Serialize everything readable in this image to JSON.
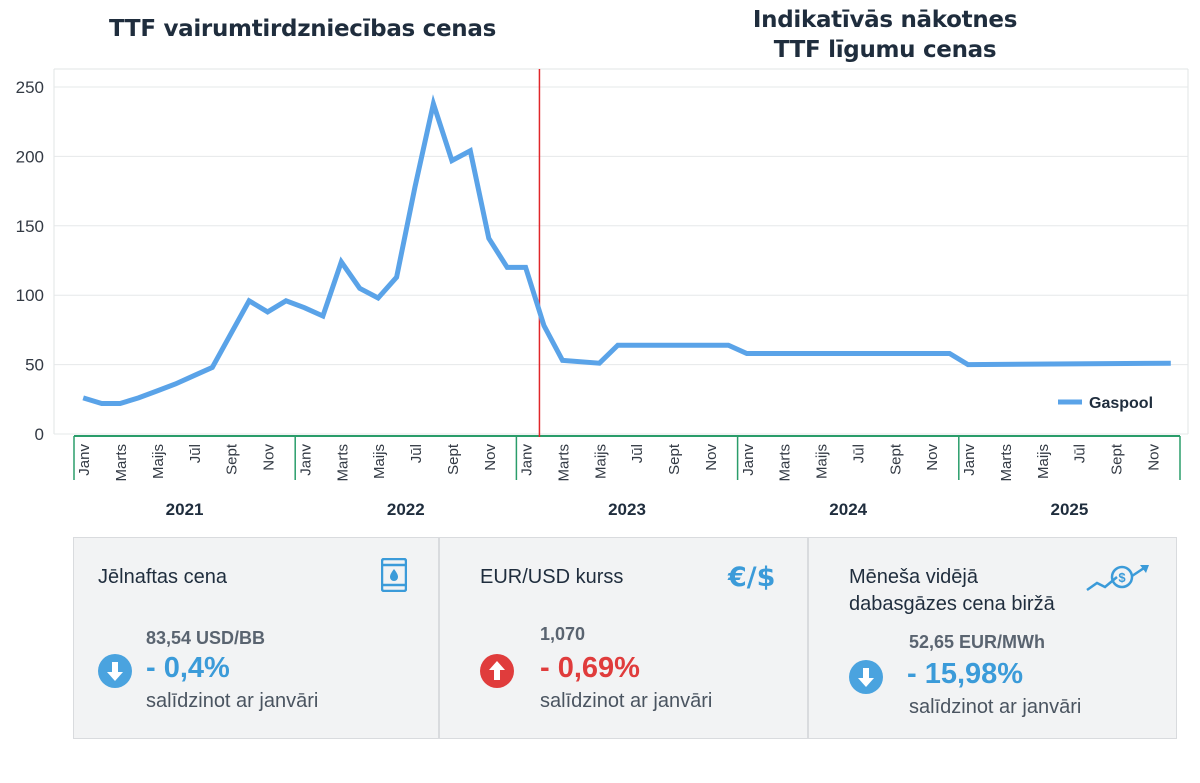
{
  "titles": {
    "left": "TTF vairumtirdzniecības cenas",
    "right_line1": "Indikatīvās nākotnes",
    "right_line2": "TTF līgumu cenas"
  },
  "chart_data": {
    "type": "line",
    "y_ticks": [
      0,
      50,
      100,
      150,
      200,
      250
    ],
    "ylim": [
      0,
      250
    ],
    "month_labels": [
      "Janv",
      "Marts",
      "Maijs",
      "Jūl",
      "Sept",
      "Nov"
    ],
    "years": [
      "2021",
      "2022",
      "2023",
      "2024",
      "2025"
    ],
    "legend_position": "bottom-right",
    "grid": true,
    "divider_after": "2023-01",
    "series": [
      {
        "name": "Gaspool",
        "color": "#5aa3e8",
        "points": [
          [
            "2021-01",
            26
          ],
          [
            "2021-02",
            22
          ],
          [
            "2021-03",
            22
          ],
          [
            "2021-04",
            26
          ],
          [
            "2021-05",
            31
          ],
          [
            "2021-06",
            36
          ],
          [
            "2021-07",
            42
          ],
          [
            "2021-08",
            48
          ],
          [
            "2021-09",
            72
          ],
          [
            "2021-10",
            96
          ],
          [
            "2021-11",
            88
          ],
          [
            "2021-12",
            96
          ],
          [
            "2022-01",
            91
          ],
          [
            "2022-02",
            85
          ],
          [
            "2022-03",
            124
          ],
          [
            "2022-04",
            105
          ],
          [
            "2022-05",
            98
          ],
          [
            "2022-06",
            113
          ],
          [
            "2022-07",
            178
          ],
          [
            "2022-08",
            238
          ],
          [
            "2022-09",
            197
          ],
          [
            "2022-10",
            204
          ],
          [
            "2022-11",
            141
          ],
          [
            "2022-12",
            120
          ],
          [
            "2023-01",
            120
          ],
          [
            "2023-02",
            78
          ],
          [
            "2023-03",
            53
          ],
          [
            "2023-05",
            51
          ],
          [
            "2023-06",
            64
          ],
          [
            "2023-12",
            64
          ],
          [
            "2024-01",
            58
          ],
          [
            "2024-12",
            58
          ],
          [
            "2025-01",
            50
          ],
          [
            "2025-12",
            51
          ]
        ]
      }
    ]
  },
  "cards": [
    {
      "label": "Jēlnaftas cena",
      "value": "83,54 USD/BB",
      "change": "- 0,4%",
      "direction": "down",
      "change_color": "#3b9bd9",
      "note": "salīdzinot ar janvāri",
      "icon": "oil-barrel-icon"
    },
    {
      "label": "EUR/USD kurss",
      "value": "1,070",
      "change": "- 0,69%",
      "direction": "up",
      "change_color": "#e03c3c",
      "note": "salīdzinot ar janvāri",
      "icon_text": "€/$",
      "icon": "euro-dollar-icon"
    },
    {
      "label_line1": "Mēneša vidējā",
      "label_line2": "dabasgāzes cena biržā",
      "value": "52,65 EUR/MWh",
      "change": "- 15,98%",
      "direction": "down",
      "change_color": "#3b9bd9",
      "note": "salīdzinot ar janvāri",
      "icon": "rising-price-icon"
    }
  ]
}
